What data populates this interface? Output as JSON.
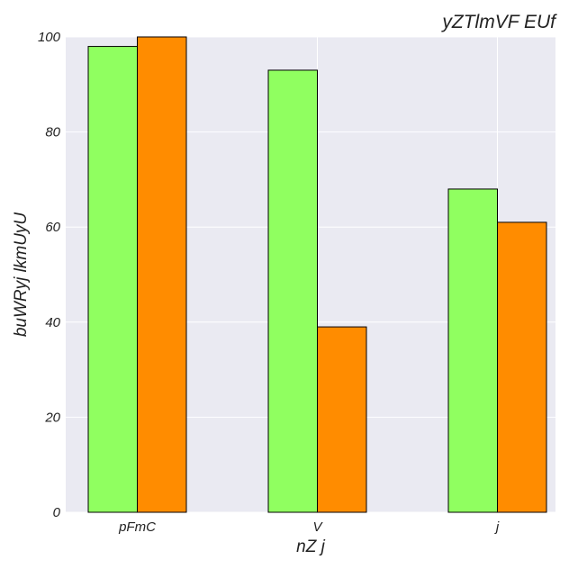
{
  "chart_data": {
    "type": "bar",
    "title": "yZTlmVF  EUf",
    "xlabel": "nZ j",
    "ylabel": "buWRyj  lkmUyU",
    "categories": [
      "pFmC",
      "V",
      "j"
    ],
    "series": [
      {
        "values": [
          98,
          93,
          68
        ],
        "color": "#90ff60"
      },
      {
        "values": [
          100,
          39,
          61
        ],
        "color": "#ff8c00"
      }
    ],
    "ylim": [
      0,
      100
    ],
    "yticks": [
      0,
      20,
      40,
      60,
      80,
      100
    ],
    "grid": true,
    "background": "#eaeaf2",
    "grid_color": "#ffffff"
  }
}
